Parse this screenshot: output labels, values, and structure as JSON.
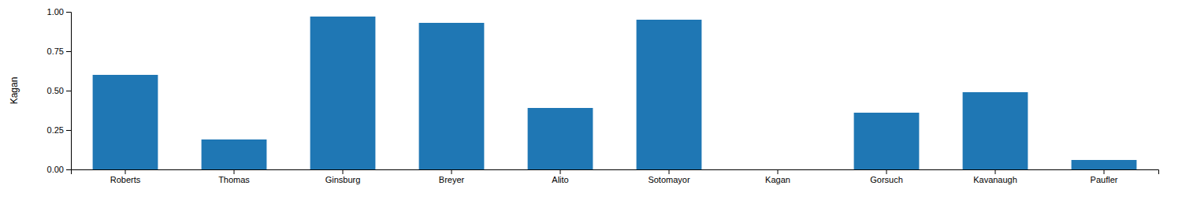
{
  "chart_data": {
    "type": "bar",
    "categories": [
      "Roberts",
      "Thomas",
      "Ginsburg",
      "Breyer",
      "Alito",
      "Sotomayor",
      "Kagan",
      "Gorsuch",
      "Kavanaugh",
      "Paufler"
    ],
    "values": [
      0.6,
      0.19,
      0.97,
      0.93,
      0.39,
      0.95,
      0.0,
      0.36,
      0.49,
      0.06
    ],
    "color": "#1f77b4",
    "ylabel": "Kagan",
    "ylim": [
      0.0,
      1.0
    ],
    "yticks": [
      {
        "value": 0.0,
        "label": "0.00"
      },
      0.25,
      {
        "value": 0.5,
        "label": "0.50"
      },
      0.75,
      {
        "value": 1.0,
        "label": "1.00"
      }
    ],
    "grid": false
  }
}
